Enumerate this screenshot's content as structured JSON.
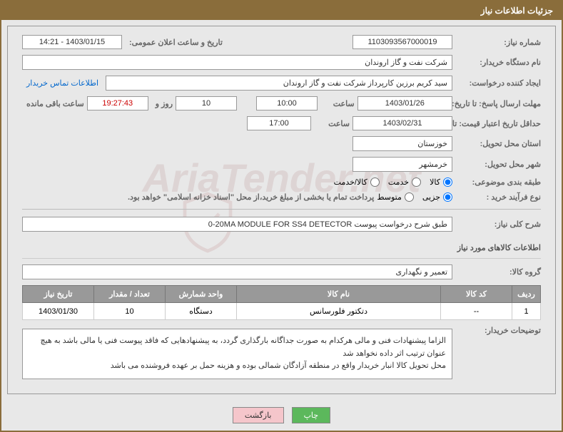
{
  "header": {
    "title": "جزئیات اطلاعات نیاز"
  },
  "watermark": "AriaTender.net",
  "fields": {
    "need_no_label": "شماره نیاز:",
    "need_no": "1103093567000019",
    "announce_label": "تاریخ و ساعت اعلان عمومی:",
    "announce_val": "1403/01/15 - 14:21",
    "buyer_org_label": "نام دستگاه خریدار:",
    "buyer_org": "شرکت نفت و گاز اروندان",
    "requester_label": "ایجاد کننده درخواست:",
    "requester": "سید کریم برزین کارپرداز شرکت نفت و گاز اروندان",
    "contact_link": "اطلاعات تماس خریدار",
    "deadline_label": "مهلت ارسال پاسخ: تا تاریخ:",
    "deadline_date": "1403/01/26",
    "time_label": "ساعت",
    "deadline_time": "10:00",
    "days_val": "10",
    "days_suffix": "روز و",
    "countdown": "19:27:43",
    "remaining_label": "ساعت باقی مانده",
    "validity_label": "حداقل تاریخ اعتبار قیمت: تا تاریخ:",
    "validity_date": "1403/02/31",
    "validity_time": "17:00",
    "province_label": "استان محل تحویل:",
    "province": "خوزستان",
    "city_label": "شهر محل تحویل:",
    "city": "خرمشهر",
    "category_label": "طبقه بندی موضوعی:",
    "cat_goods": "کالا",
    "cat_service": "خدمت",
    "cat_both": "کالا/خدمت",
    "process_label": "نوع فرآیند خرید :",
    "proc_partial": "جزیی",
    "proc_medium": "متوسط",
    "payment_note": "پرداخت تمام یا بخشی از مبلغ خرید،از محل \"اسناد خزانه اسلامی\" خواهد بود.",
    "desc_label": "شرح کلی نیاز:",
    "desc_val": "0-20MA MODULE FOR SS4 DETECTOR طبق شرح درخواست پیوست",
    "goods_section": "اطلاعات کالاهای مورد نیاز",
    "group_label": "گروه کالا:",
    "group_val": "تعمیر و نگهداری",
    "buyer_notes_label": "توضیحات خریدار:",
    "buyer_notes1": "الزاما پیشنهادات فنی و مالی هرکدام به صورت جداگانه بارگذاری گردد، به پیشنهادهایی که فاقد پیوست فنی یا مالی باشد به هیچ عنوان ترتیب اثر داده نخواهد شد",
    "buyer_notes2": "محل تحویل کالا انبار خریدار واقع در منطقه آزادگان شمالی بوده و هزینه حمل بر عهده فروشنده می باشد"
  },
  "table": {
    "headers": {
      "row": "ردیف",
      "code": "کد کالا",
      "name": "نام کالا",
      "unit": "واحد شمارش",
      "qty": "تعداد / مقدار",
      "date": "تاریخ نیاز"
    },
    "rows": [
      {
        "idx": "1",
        "code": "--",
        "name": "دتکتور فلورسانس",
        "unit": "دستگاه",
        "qty": "10",
        "date": "1403/01/30"
      }
    ]
  },
  "buttons": {
    "print": "چاپ",
    "back": "بازگشت"
  }
}
